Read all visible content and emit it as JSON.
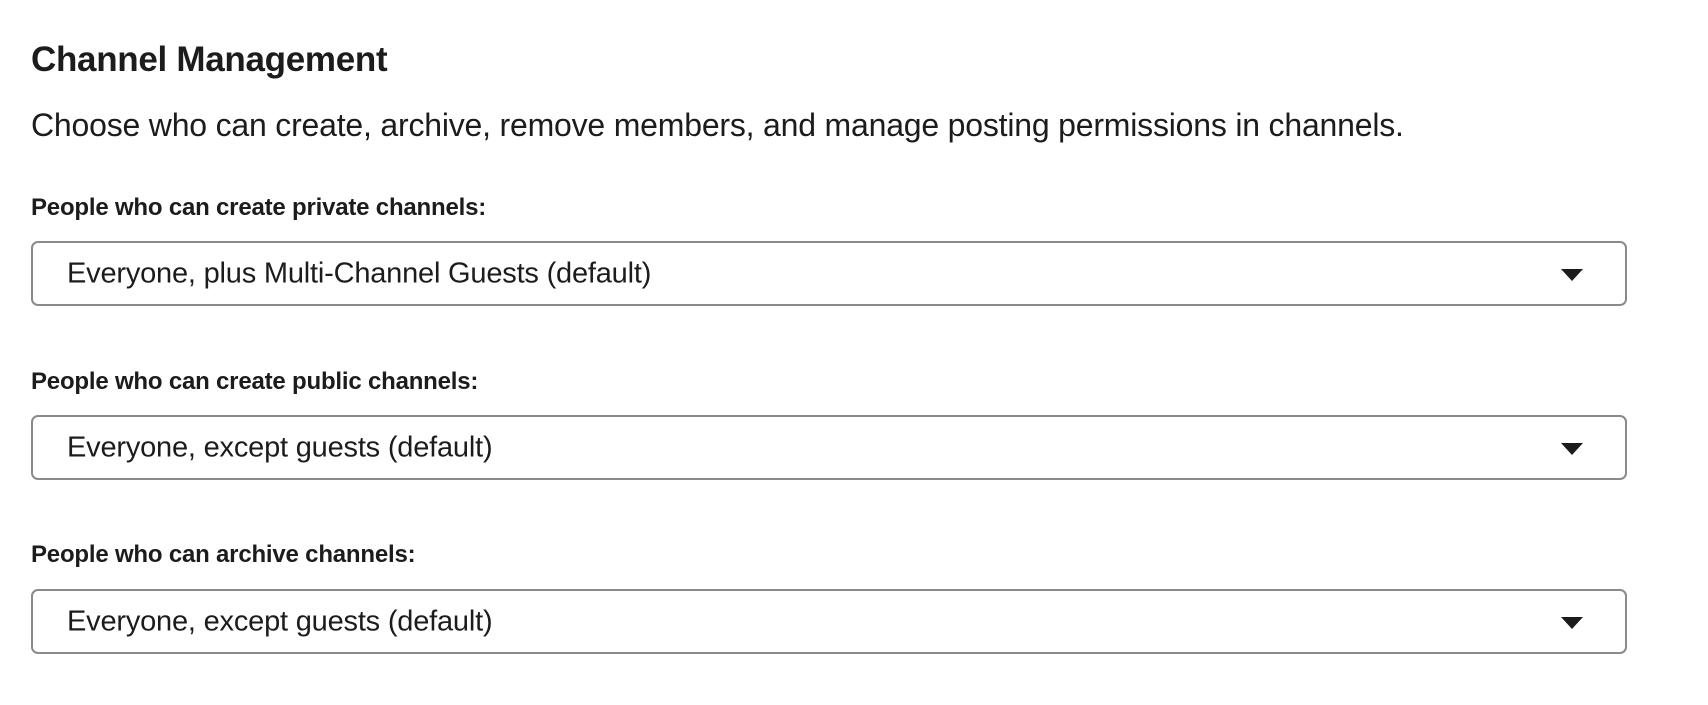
{
  "section": {
    "title": "Channel Management",
    "description": "Choose who can create, archive, remove members, and manage posting permissions in channels."
  },
  "settings": [
    {
      "label": "People who can create private channels:",
      "value": "Everyone, plus Multi-Channel Guests (default)",
      "icon": "caret-down-icon"
    },
    {
      "label": "People who can create public channels:",
      "value": "Everyone, except guests (default)",
      "icon": "caret-down-icon"
    },
    {
      "label": "People who can archive channels:",
      "value": "Everyone, except guests (default)",
      "icon": "caret-down-icon"
    }
  ]
}
